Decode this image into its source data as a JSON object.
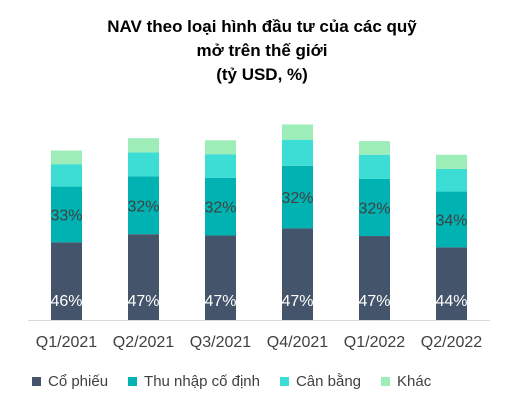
{
  "chart_data": {
    "type": "bar",
    "stacked": true,
    "title": [
      "NAV theo loại hình đầu tư của các quỹ",
      "mở trên thế giới",
      "(tỷ USD, %)"
    ],
    "categories": [
      "Q1/2021",
      "Q2/2021",
      "Q3/2021",
      "Q4/2021",
      "Q1/2022",
      "Q2/2022"
    ],
    "series": [
      {
        "name": "Cổ phiếu",
        "color": "#44546A",
        "values": [
          29.5,
          32.6,
          32.1,
          34.8,
          31.9,
          27.6
        ],
        "labels": [
          "46%",
          "47%",
          "47%",
          "47%",
          "47%",
          "44%"
        ]
      },
      {
        "name": "Thu nhập cố định",
        "color": "#00B2B2",
        "values": [
          21.2,
          22.0,
          21.9,
          23.8,
          21.7,
          21.2
        ],
        "labels": [
          "33%",
          "32%",
          "32%",
          "32%",
          "32%",
          "34%"
        ]
      },
      {
        "name": "Cân bằng",
        "color": "#3CDDD5",
        "values": [
          8.5,
          9.1,
          9.0,
          9.9,
          9.2,
          8.6
        ],
        "labels": [
          "",
          "",
          "",
          "",
          "",
          ""
        ]
      },
      {
        "name": "Khác",
        "color": "#9DEDB8",
        "values": [
          5.2,
          5.4,
          5.3,
          5.8,
          5.2,
          5.4
        ],
        "labels": [
          "",
          "",
          "",
          "",
          "",
          ""
        ]
      }
    ],
    "ylim": [
      0,
      95
    ],
    "grid": false,
    "legend_position": "bottom"
  }
}
